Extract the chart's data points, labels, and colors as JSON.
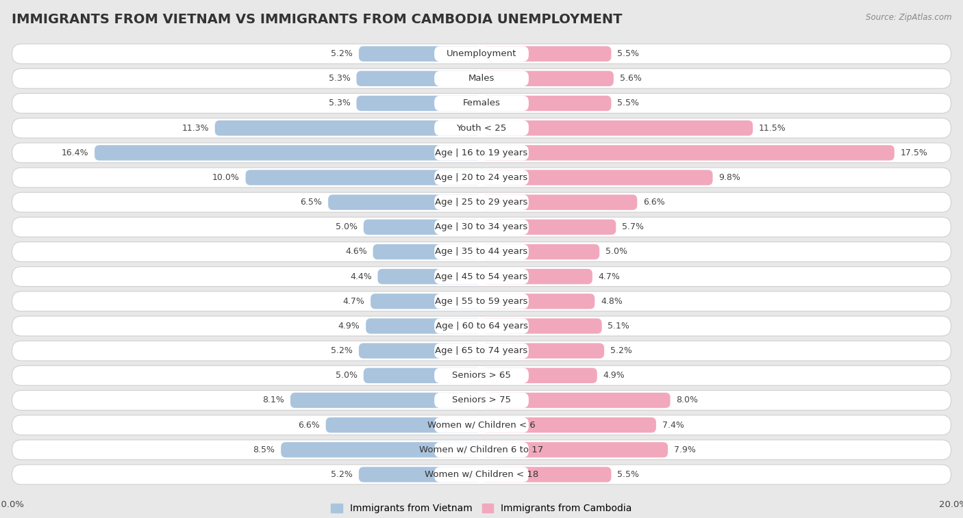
{
  "title": "IMMIGRANTS FROM VIETNAM VS IMMIGRANTS FROM CAMBODIA UNEMPLOYMENT",
  "source": "Source: ZipAtlas.com",
  "categories": [
    "Unemployment",
    "Males",
    "Females",
    "Youth < 25",
    "Age | 16 to 19 years",
    "Age | 20 to 24 years",
    "Age | 25 to 29 years",
    "Age | 30 to 34 years",
    "Age | 35 to 44 years",
    "Age | 45 to 54 years",
    "Age | 55 to 59 years",
    "Age | 60 to 64 years",
    "Age | 65 to 74 years",
    "Seniors > 65",
    "Seniors > 75",
    "Women w/ Children < 6",
    "Women w/ Children 6 to 17",
    "Women w/ Children < 18"
  ],
  "vietnam_values": [
    5.2,
    5.3,
    5.3,
    11.3,
    16.4,
    10.0,
    6.5,
    5.0,
    4.6,
    4.4,
    4.7,
    4.9,
    5.2,
    5.0,
    8.1,
    6.6,
    8.5,
    5.2
  ],
  "cambodia_values": [
    5.5,
    5.6,
    5.5,
    11.5,
    17.5,
    9.8,
    6.6,
    5.7,
    5.0,
    4.7,
    4.8,
    5.1,
    5.2,
    4.9,
    8.0,
    7.4,
    7.9,
    5.5
  ],
  "vietnam_color": "#aac4de",
  "cambodia_color": "#f2a8bc",
  "vietnam_label": "Immigrants from Vietnam",
  "cambodia_label": "Immigrants from Cambodia",
  "axis_limit": 20.0,
  "background_color": "#e8e8e8",
  "row_color": "#ffffff",
  "row_border_color": "#d0d0d0",
  "title_fontsize": 14,
  "label_fontsize": 9.5,
  "value_fontsize": 9,
  "legend_fontsize": 10,
  "source_fontsize": 8.5
}
